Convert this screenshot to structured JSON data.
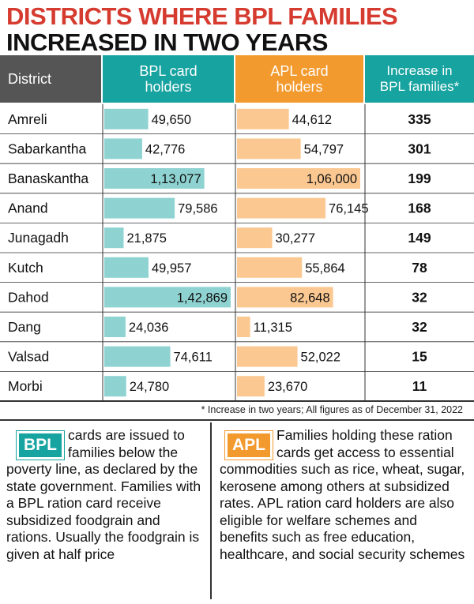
{
  "title": {
    "line1": "DISTRICTS WHERE BPL FAMILIES",
    "line2": "INCREASED IN TWO YEARS"
  },
  "columns": {
    "district": "District",
    "bpl": [
      "BPL card",
      "holders"
    ],
    "apl": [
      "APL card",
      "holders"
    ],
    "increase": [
      "Increase in",
      "BPL families*"
    ]
  },
  "colors": {
    "bpl_bar": "#8ed3d1",
    "apl_bar": "#fbc892",
    "bpl_header": "#17a3a0",
    "apl_header": "#f39a2e",
    "title_red": "#d63b2f"
  },
  "chart_data": {
    "type": "table",
    "categories": [
      "Amreli",
      "Sabarkantha",
      "Banaskantha",
      "Anand",
      "Junagadh",
      "Kutch",
      "Dahod",
      "Dang",
      "Valsad",
      "Morbi"
    ],
    "series": [
      {
        "name": "BPL card holders",
        "values": [
          49650,
          42776,
          113077,
          79586,
          21875,
          49957,
          142869,
          24036,
          74611,
          24780
        ],
        "labels": [
          "49,650",
          "42,776",
          "1,13,077",
          "79,586",
          "21,875",
          "49,957",
          "1,42,869",
          "24,036",
          "74,611",
          "24,780"
        ]
      },
      {
        "name": "APL card holders",
        "values": [
          44612,
          54797,
          106000,
          76145,
          30277,
          55864,
          82648,
          11315,
          52022,
          23670
        ],
        "labels": [
          "44,612",
          "54,797",
          "1,06,000",
          "76,145",
          "30,277",
          "55,864",
          "82,648",
          "11,315",
          "52,022",
          "23,670"
        ]
      },
      {
        "name": "Increase in BPL families*",
        "values": [
          335,
          301,
          199,
          168,
          149,
          78,
          32,
          32,
          15,
          11
        ]
      }
    ],
    "bpl_max": 142869,
    "apl_max": 106000
  },
  "footnote": "* Increase in two years; All figures as of December 31, 2022",
  "bpl_box": {
    "badge": "BPL",
    "text": "cards are issued to families below the poverty line, as declared by the state government. Families with a BPL ration card receive subsidized foodgrain and rations. Usually the foodgrain is given at half price"
  },
  "apl_box": {
    "badge": "APL",
    "text": "Families holding these ration cards get access to essential commodities such as rice, wheat, sugar, kerosene among others at subsidized rates. APL ration card holders are also eligible for welfare schemes and benefits such as free education, healthcare, and social security schemes"
  }
}
